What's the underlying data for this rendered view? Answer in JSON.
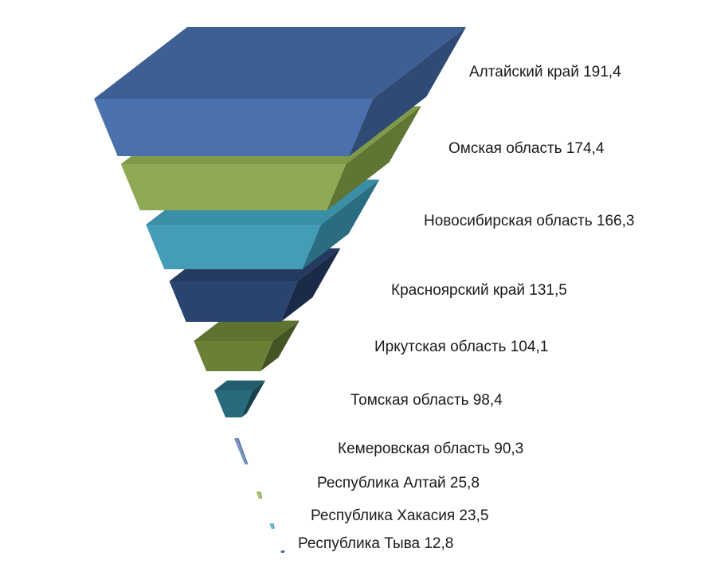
{
  "chart_data": {
    "type": "funnel",
    "categories": [
      "Алтайский край",
      "Омская область",
      "Новосибирская область",
      "Красноярский край",
      "Иркутская область",
      "Томская область",
      "Кемеровская область",
      "Республика Алтай",
      "Республика Хакасия",
      "Республика Тыва"
    ],
    "values": [
      191.4,
      174.4,
      166.3,
      131.5,
      104.1,
      98.4,
      90.3,
      25.8,
      23.5,
      12.8
    ],
    "labels": [
      "Алтайский край 191,4",
      "Омская область 174,4",
      "Новосибирская область 166,3",
      "Красноярский край 131,5",
      "Иркутская область 104,1",
      "Томская область 98,4",
      "Кемеровская область 90,3",
      "Республика Алтай 25,8",
      "Республика Хакасия 23,5",
      "Республика Тыва 12,8"
    ],
    "colors": [
      {
        "top": "#3d5f94",
        "front": "#4a71ad",
        "side": "#2f4a74"
      },
      {
        "top": "#7f9a48",
        "front": "#8faa55",
        "side": "#5f7534"
      },
      {
        "top": "#3a8ea6",
        "front": "#449cb6",
        "side": "#2a6d80"
      },
      {
        "top": "#243a60",
        "front": "#2a4470",
        "side": "#1a2a47"
      },
      {
        "top": "#5e7330",
        "front": "#6a8036",
        "side": "#445423"
      },
      {
        "top": "#215d6d",
        "front": "#276b7c",
        "side": "#174450"
      },
      {
        "top": "#6c87b8",
        "front": "#7893c2",
        "side": "#516b96"
      },
      {
        "top": "#99b25e",
        "front": "#a6bf6a",
        "side": "#7c924a"
      },
      {
        "top": "#5fafc6",
        "front": "#6cbcd2",
        "side": "#4a93a8"
      },
      {
        "top": "#3f5f90",
        "front": "#4a6ea6",
        "side": "#2f4a74"
      }
    ]
  }
}
